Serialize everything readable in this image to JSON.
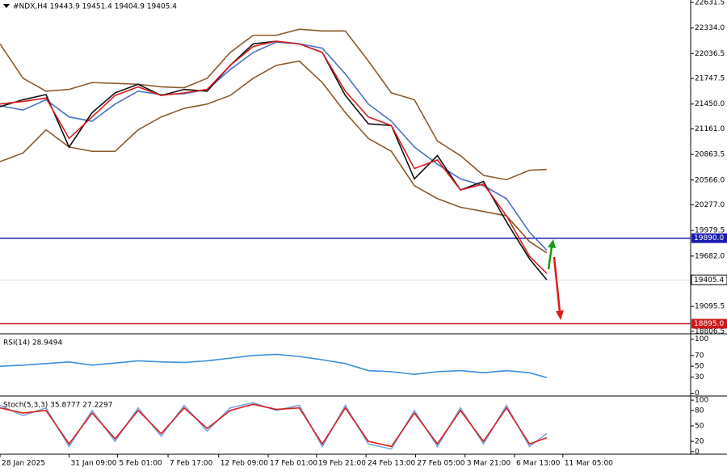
{
  "chart_data": [
    {
      "type": "line",
      "title": "#NDX,H4  19443.9 19451.4 19404.9 19405.4",
      "x": [
        0,
        2,
        4,
        6,
        8,
        10,
        12,
        14,
        16,
        18,
        20,
        22,
        24,
        26,
        28,
        30,
        32,
        34,
        36,
        38,
        40,
        42,
        44,
        46,
        47.5
      ],
      "xlim": [
        0,
        60
      ],
      "ylim": [
        18778,
        22660
      ],
      "yticks": [
        22631.5,
        {
          "value": 22334,
          "label": "22334.0"
        },
        22036.5,
        21747.5,
        {
          "value": 21450,
          "label": "21450.0"
        },
        {
          "value": 21161,
          "label": "21161.0"
        },
        20863.5,
        {
          "value": 20566,
          "label": "20566.0"
        },
        {
          "value": 20277,
          "label": "20277.0"
        },
        19979.5,
        {
          "value": 19682,
          "label": "19682.0"
        },
        19095.5,
        18806.5
      ],
      "series": [
        {
          "color": "#8b5a2b",
          "values": [
            22150,
            21750,
            21600,
            21620,
            21700,
            21690,
            21680,
            21650,
            21640,
            21750,
            22050,
            22250,
            22250,
            22320,
            22300,
            22300,
            21950,
            21580,
            21500,
            21020,
            20850,
            20620,
            20570,
            20680,
            20690
          ]
        },
        {
          "color": "#8b5a2b",
          "values": [
            20780,
            20880,
            21150,
            20950,
            20900,
            20900,
            21150,
            21300,
            21400,
            21450,
            21550,
            21750,
            21900,
            21950,
            21700,
            21350,
            21050,
            20900,
            20500,
            20350,
            20250,
            20200,
            20150,
            19850,
            19720
          ]
        },
        {
          "color": "#4a72c8",
          "values": [
            21430,
            21380,
            21500,
            21300,
            21250,
            21450,
            21600,
            21560,
            21570,
            21620,
            21850,
            22050,
            22170,
            22150,
            22100,
            21800,
            21450,
            21250,
            20950,
            20750,
            20580,
            20500,
            20350,
            19960,
            19750
          ]
        },
        {
          "color": "#111111",
          "values": [
            21420,
            21500,
            21560,
            20950,
            21350,
            21580,
            21680,
            21550,
            21620,
            21600,
            21900,
            22150,
            22180,
            22150,
            22050,
            21550,
            21220,
            21200,
            20580,
            20850,
            20450,
            20550,
            20080,
            19650,
            19405.4
          ]
        },
        {
          "color": "#d81e1e",
          "values": [
            21450,
            21480,
            21520,
            21050,
            21300,
            21550,
            21650,
            21550,
            21580,
            21620,
            21900,
            22120,
            22180,
            22150,
            22050,
            21600,
            21300,
            21200,
            20700,
            20800,
            20450,
            20520,
            20150,
            19680,
            19480
          ]
        }
      ],
      "levels": [
        {
          "value": 19890,
          "label": "19890.0",
          "color": "#1c1cb0"
        },
        {
          "value": 18895,
          "label": "18895.0",
          "color": "#d01818"
        }
      ],
      "last_price": 19405.4
    },
    {
      "type": "line",
      "title": "RSI(14) 28.9494",
      "x": [
        0,
        2,
        4,
        6,
        8,
        10,
        12,
        14,
        16,
        18,
        20,
        22,
        24,
        26,
        28,
        30,
        32,
        34,
        36,
        38,
        40,
        42,
        44,
        46,
        47.5
      ],
      "xlim": [
        0,
        60
      ],
      "ylim": [
        -5,
        110
      ],
      "yticks": [
        100,
        70,
        50,
        30,
        0
      ],
      "series": [
        {
          "color": "#3b8fd9",
          "values": [
            50,
            52,
            55,
            58,
            52,
            56,
            60,
            58,
            57,
            60,
            65,
            70,
            72,
            68,
            62,
            55,
            42,
            40,
            35,
            40,
            42,
            38,
            42,
            38,
            29
          ]
        }
      ]
    },
    {
      "type": "line",
      "title": "Stoch(5,3,3) 35.8777 27.2297",
      "x": [
        0,
        2,
        4,
        6,
        8,
        10,
        12,
        14,
        16,
        18,
        20,
        22,
        24,
        26,
        28,
        30,
        32,
        34,
        36,
        38,
        40,
        42,
        44,
        46,
        47.5
      ],
      "xlim": [
        0,
        60
      ],
      "ylim": [
        -5,
        108
      ],
      "yticks": [
        100,
        80,
        50,
        20,
        0
      ],
      "series": [
        {
          "color": "#7aa6e0",
          "values": [
            90,
            70,
            85,
            10,
            80,
            20,
            85,
            30,
            90,
            40,
            85,
            95,
            80,
            90,
            10,
            90,
            15,
            5,
            80,
            10,
            85,
            15,
            90,
            10,
            35
          ]
        },
        {
          "color": "#d81e1e",
          "values": [
            85,
            75,
            80,
            15,
            75,
            25,
            80,
            35,
            85,
            45,
            80,
            92,
            82,
            85,
            15,
            85,
            20,
            10,
            75,
            15,
            80,
            20,
            85,
            15,
            27
          ]
        }
      ],
      "xticks": [
        {
          "value": 0,
          "label": "28 Jan 2025"
        },
        {
          "value": 6,
          "label": "31 Jan 09:00"
        },
        {
          "value": 10.2,
          "label": "5 Feb 01:00"
        },
        {
          "value": 14.6,
          "label": "7 Feb 17:00"
        },
        {
          "value": 19,
          "label": "12 Feb 09:00"
        },
        {
          "value": 23.3,
          "label": "17 Feb 01:00"
        },
        {
          "value": 27.5,
          "label": "19 Feb 21:00"
        },
        {
          "value": 31.8,
          "label": "24 Feb 13:00"
        },
        {
          "value": 36.1,
          "label": "27 Feb 05:00"
        },
        {
          "value": 40.4,
          "label": "3 Mar 21:00"
        },
        {
          "value": 44.7,
          "label": "6 Mar 13:00"
        },
        {
          "value": 48.9,
          "label": "11 Mar 05:00"
        }
      ]
    }
  ]
}
